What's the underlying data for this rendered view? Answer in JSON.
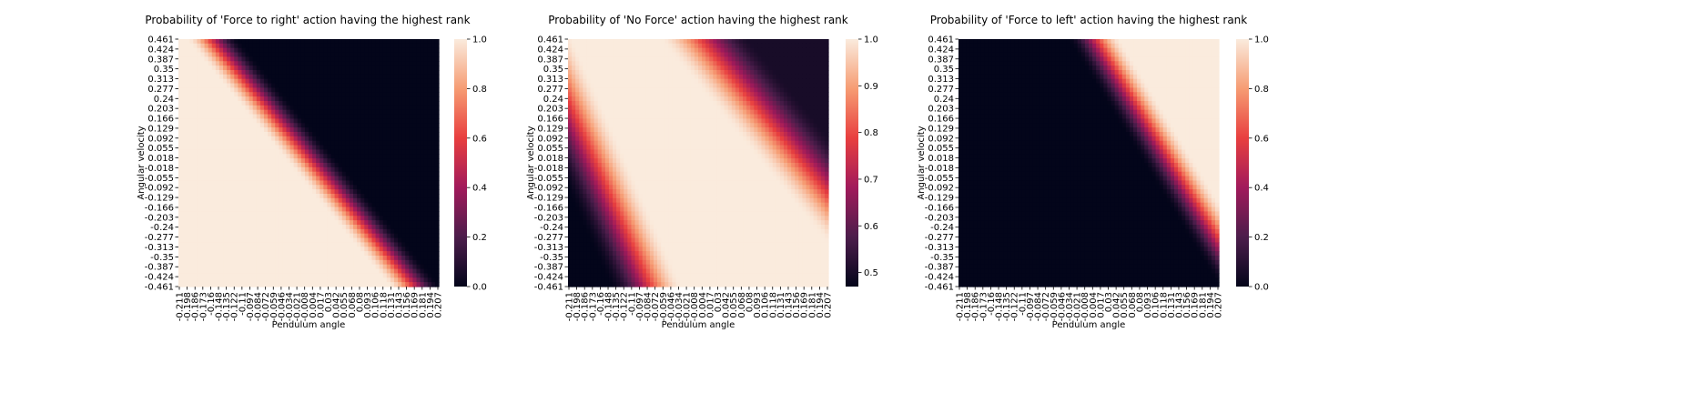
{
  "colors": {
    "colormap": "rocket",
    "stops": [
      "#03051a",
      "#4c1d4b",
      "#a11a5b",
      "#e83f3f",
      "#f69c73",
      "#faebdd"
    ],
    "axes": "#000000"
  },
  "chart_data": [
    {
      "type": "heatmap",
      "title": "Probability of 'Force to right' action having the highest rank",
      "xlabel": "Pendulum angle",
      "ylabel": "Angular velocity",
      "x_ticks": [
        "-0.211",
        "-0.198",
        "-0.186",
        "-0.173",
        "-0.16",
        "-0.148",
        "-0.135",
        "-0.122",
        "-0.11",
        "-0.097",
        "-0.084",
        "-0.072",
        "-0.059",
        "-0.046",
        "-0.034",
        "-0.021",
        "-0.008",
        "0.004",
        "0.017",
        "0.03",
        "0.042",
        "0.055",
        "0.068",
        "0.08",
        "0.093",
        "0.106",
        "0.118",
        "0.131",
        "0.143",
        "0.156",
        "0.169",
        "0.181",
        "0.194",
        "0.207"
      ],
      "y_ticks": [
        "0.461",
        "0.424",
        "0.387",
        "0.35",
        "0.313",
        "0.277",
        "0.24",
        "0.203",
        "0.166",
        "0.129",
        "0.092",
        "0.055",
        "0.018",
        "-0.018",
        "-0.055",
        "-0.092",
        "-0.129",
        "-0.166",
        "-0.203",
        "-0.24",
        "-0.277",
        "-0.313",
        "-0.35",
        "-0.387",
        "-0.424",
        "-0.461"
      ],
      "colorbar": {
        "min": 0.0,
        "max": 1.0,
        "ticks": [
          "0.0",
          "0.2",
          "0.4",
          "0.6",
          "0.8",
          "1.0"
        ]
      },
      "pattern": "decreasing diagonal band: ~1 (light) in lower-left, ~0 (dark) in upper-right",
      "transition_angle_at_velocity": [
        {
          "velocity": 0.461,
          "angle": -0.17
        },
        {
          "velocity": 0.0,
          "angle": -0.04
        },
        {
          "velocity": -0.461,
          "angle": 0.1
        }
      ]
    },
    {
      "type": "heatmap",
      "title": "Probability of 'No Force' action having the highest rank",
      "xlabel": "Pendulum angle",
      "ylabel": "Angular velocity",
      "x_ticks": [
        "-0.211",
        "-0.198",
        "-0.186",
        "-0.173",
        "-0.16",
        "-0.148",
        "-0.135",
        "-0.122",
        "-0.11",
        "-0.097",
        "-0.084",
        "-0.072",
        "-0.059",
        "-0.046",
        "-0.034",
        "-0.021",
        "-0.008",
        "0.004",
        "0.017",
        "0.03",
        "0.042",
        "0.055",
        "0.068",
        "0.08",
        "0.093",
        "0.106",
        "0.118",
        "0.131",
        "0.143",
        "0.156",
        "0.169",
        "0.181",
        "0.194",
        "0.207"
      ],
      "y_ticks": [
        "0.461",
        "0.424",
        "0.387",
        "0.35",
        "0.313",
        "0.277",
        "0.24",
        "0.203",
        "0.166",
        "0.129",
        "0.092",
        "0.055",
        "0.018",
        "-0.018",
        "-0.055",
        "-0.092",
        "-0.129",
        "-0.166",
        "-0.203",
        "-0.24",
        "-0.277",
        "-0.313",
        "-0.35",
        "-0.387",
        "-0.424",
        "-0.461"
      ],
      "colorbar": {
        "min": 0.47,
        "max": 1.0,
        "ticks": [
          "0.5",
          "0.6",
          "0.7",
          "0.8",
          "0.9",
          "1.0"
        ]
      },
      "pattern": "~1 (light) along main diagonal band; lower values (~0.47) in lower-left and upper-right corners",
      "min_value_corners": [
        {
          "angle": -0.211,
          "velocity": -0.461,
          "value": 0.47
        },
        {
          "angle": 0.207,
          "velocity": 0.461,
          "value": 0.5
        }
      ]
    },
    {
      "type": "heatmap",
      "title": "Probability of 'Force to left' action having the highest rank",
      "xlabel": "Pendulum angle",
      "ylabel": "Angular velocity",
      "x_ticks": [
        "-0.211",
        "-0.198",
        "-0.186",
        "-0.173",
        "-0.16",
        "-0.148",
        "-0.135",
        "-0.122",
        "-0.11",
        "-0.097",
        "-0.084",
        "-0.072",
        "-0.059",
        "-0.046",
        "-0.034",
        "-0.021",
        "-0.008",
        "0.004",
        "0.017",
        "0.03",
        "0.042",
        "0.055",
        "0.068",
        "0.08",
        "0.093",
        "0.106",
        "0.118",
        "0.131",
        "0.143",
        "0.156",
        "0.169",
        "0.181",
        "0.194",
        "0.207"
      ],
      "y_ticks": [
        "0.461",
        "0.424",
        "0.387",
        "0.35",
        "0.313",
        "0.277",
        "0.24",
        "0.203",
        "0.166",
        "0.129",
        "0.092",
        "0.055",
        "0.018",
        "-0.018",
        "-0.055",
        "-0.092",
        "-0.129",
        "-0.166",
        "-0.203",
        "-0.24",
        "-0.277",
        "-0.313",
        "-0.35",
        "-0.387",
        "-0.424",
        "-0.461"
      ],
      "colorbar": {
        "min": 0.0,
        "max": 1.0,
        "ticks": [
          "0.0",
          "0.2",
          "0.4",
          "0.6",
          "0.8",
          "1.0"
        ]
      },
      "pattern": "decreasing diagonal band: ~0 (dark) in lower-left, ~1 (light) in upper-right",
      "transition_angle_at_velocity": [
        {
          "velocity": 0.461,
          "angle": -0.02
        },
        {
          "velocity": 0.0,
          "angle": 0.06
        },
        {
          "velocity": -0.461,
          "angle": 0.21
        }
      ]
    }
  ]
}
